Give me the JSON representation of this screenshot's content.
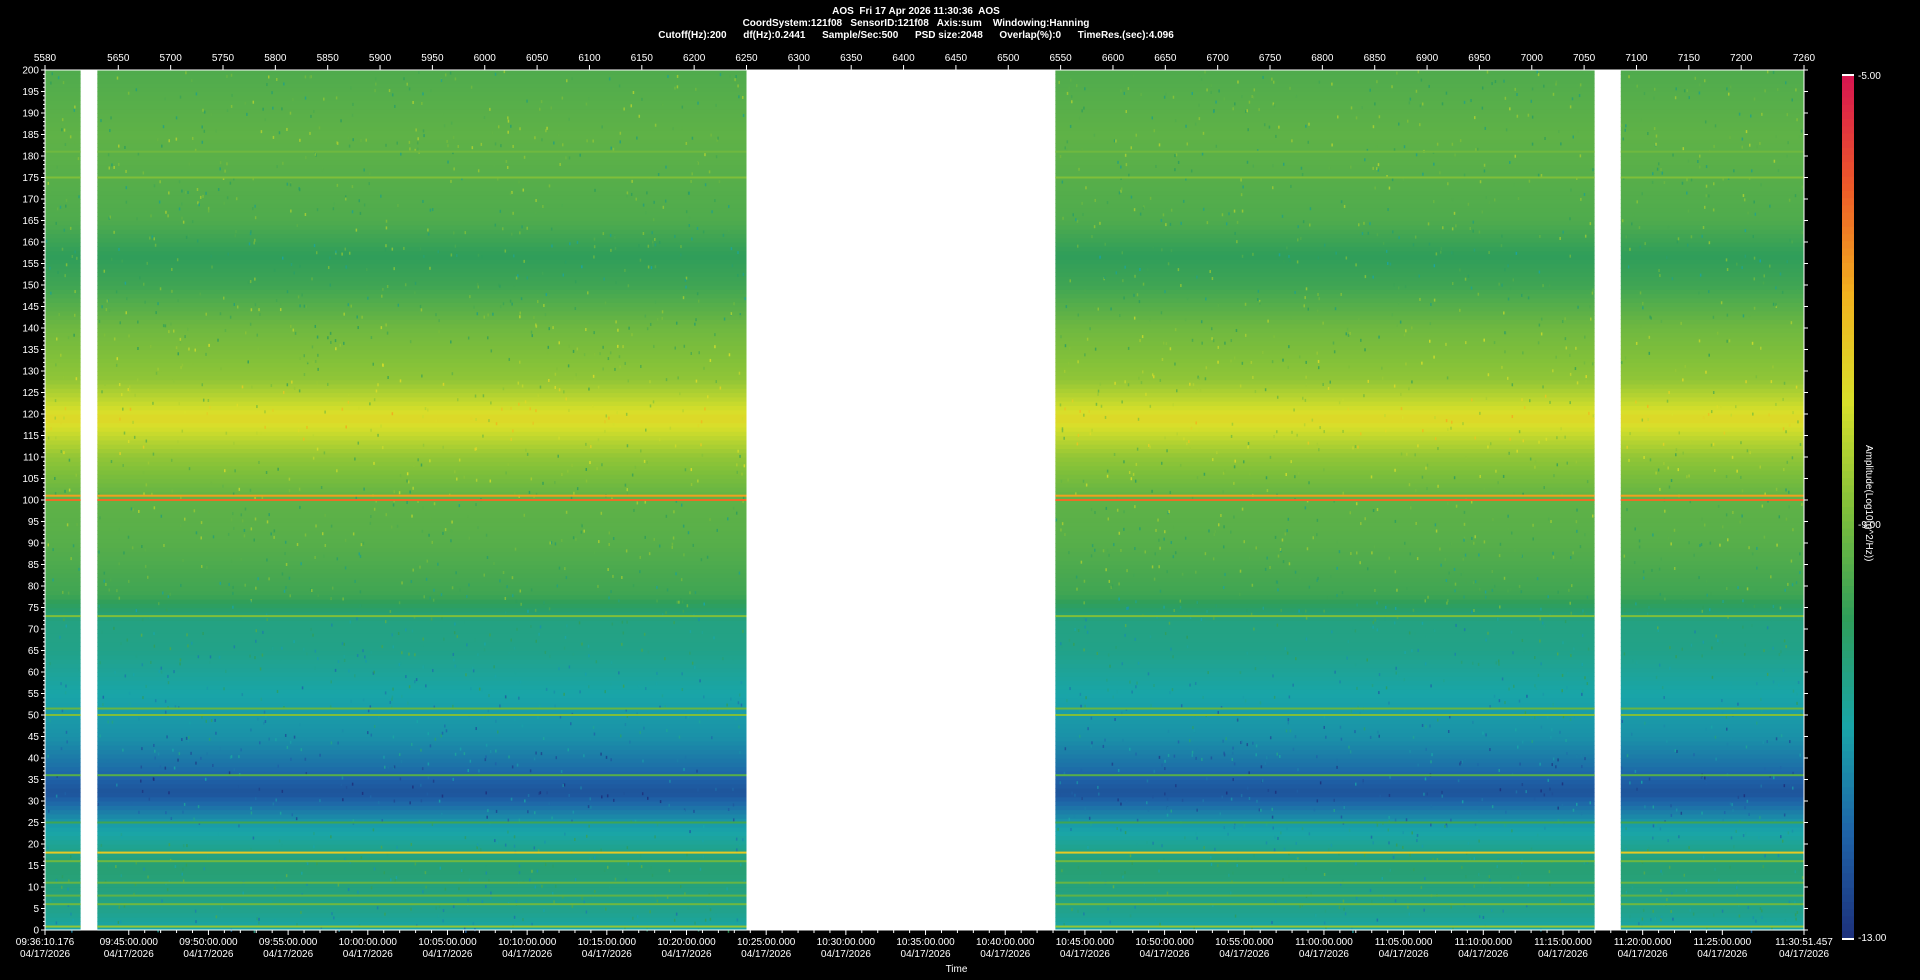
{
  "header": {
    "line1": "AOS  Fri 17 Apr 2026 11:30:36  AOS",
    "line2": "CoordSystem:121f08   SensorID:121f08   Axis:sum    Windowing:Hanning",
    "line3": "Cutoff(Hz):200      df(Hz):0.2441      Sample/Sec:500      PSD size:2048      Overlap(%):0      TimeRes.(sec):4.096"
  },
  "chart_data": {
    "type": "heatmap",
    "title": "AOS  Fri 17 Apr 2026 11:30:36  AOS",
    "xlabel": "Time",
    "ylabel": "",
    "colorbar_label": "Amplitude(Log10(g^2/Hz))",
    "colorbar_ticks": [
      "-5.00",
      "-9.00",
      "-13.00"
    ],
    "colorbar_range": [
      -13,
      -5
    ],
    "y_range": [
      0,
      200
    ],
    "y_ticks": [
      0,
      5,
      10,
      15,
      20,
      25,
      30,
      35,
      40,
      45,
      50,
      55,
      60,
      65,
      70,
      75,
      80,
      85,
      90,
      95,
      100,
      105,
      110,
      115,
      120,
      125,
      130,
      135,
      140,
      145,
      150,
      155,
      160,
      165,
      170,
      175,
      180,
      185,
      190,
      195,
      200
    ],
    "top_axis_range": [
      5580,
      7260
    ],
    "top_axis_ticks": [
      5580,
      5650,
      5700,
      5750,
      5800,
      5850,
      5900,
      5950,
      6000,
      6050,
      6100,
      6150,
      6200,
      6250,
      6300,
      6350,
      6400,
      6450,
      6500,
      6550,
      6600,
      6650,
      6700,
      6750,
      6800,
      6850,
      6900,
      6950,
      7000,
      7050,
      7100,
      7150,
      7200,
      7260
    ],
    "time_labels": [
      [
        "09:36:10.176",
        "04/17/2026"
      ],
      [
        "09:45:00.000",
        "04/17/2026"
      ],
      [
        "09:50:00.000",
        "04/17/2026"
      ],
      [
        "09:55:00.000",
        "04/17/2026"
      ],
      [
        "10:00:00.000",
        "04/17/2026"
      ],
      [
        "10:05:00.000",
        "04/17/2026"
      ],
      [
        "10:10:00.000",
        "04/17/2026"
      ],
      [
        "10:15:00.000",
        "04/17/2026"
      ],
      [
        "10:20:00.000",
        "04/17/2026"
      ],
      [
        "10:25:00.000",
        "04/17/2026"
      ],
      [
        "10:30:00.000",
        "04/17/2026"
      ],
      [
        "10:35:00.000",
        "04/17/2026"
      ],
      [
        "10:40:00.000",
        "04/17/2026"
      ],
      [
        "10:45:00.000",
        "04/17/2026"
      ],
      [
        "10:50:00.000",
        "04/17/2026"
      ],
      [
        "10:55:00.000",
        "04/17/2026"
      ],
      [
        "11:00:00.000",
        "04/17/2026"
      ],
      [
        "11:05:00.000",
        "04/17/2026"
      ],
      [
        "11:10:00.000",
        "04/17/2026"
      ],
      [
        "11:15:00.000",
        "04/17/2026"
      ],
      [
        "11:20:00.000",
        "04/17/2026"
      ],
      [
        "11:25:00.000",
        "04/17/2026"
      ],
      [
        "11:30:51.457",
        "04/17/2026"
      ]
    ],
    "data_gaps_top_axis": [
      [
        5614,
        5630
      ],
      [
        6250,
        6545
      ],
      [
        7060,
        7085
      ]
    ],
    "spectral_lines_hz": [
      {
        "hz": 0.8,
        "level": -8.8
      },
      {
        "hz": 6,
        "level": -9.2
      },
      {
        "hz": 8,
        "level": -9.4
      },
      {
        "hz": 11,
        "level": -9.3
      },
      {
        "hz": 16,
        "level": -9.2
      },
      {
        "hz": 18,
        "level": -7.5
      },
      {
        "hz": 25,
        "level": -9.8
      },
      {
        "hz": 36,
        "level": -9.5
      },
      {
        "hz": 50,
        "level": -9.0
      },
      {
        "hz": 51.5,
        "level": -9.3
      },
      {
        "hz": 73,
        "level": -9.0
      },
      {
        "hz": 100,
        "level": -6.2
      },
      {
        "hz": 101,
        "level": -6.8
      },
      {
        "hz": 175,
        "level": -9.0
      },
      {
        "hz": 181,
        "level": -9.2
      }
    ],
    "band_profile": [
      {
        "hz": 0,
        "level": -11.0
      },
      {
        "hz": 5,
        "level": -10.6
      },
      {
        "hz": 15,
        "level": -10.3
      },
      {
        "hz": 25,
        "level": -11.2
      },
      {
        "hz": 32,
        "level": -12.3
      },
      {
        "hz": 38,
        "level": -11.8
      },
      {
        "hz": 45,
        "level": -11.3
      },
      {
        "hz": 55,
        "level": -11.0
      },
      {
        "hz": 65,
        "level": -10.6
      },
      {
        "hz": 72,
        "level": -10.5
      },
      {
        "hz": 78,
        "level": -9.8
      },
      {
        "hz": 90,
        "level": -9.5
      },
      {
        "hz": 100,
        "level": -9.4
      },
      {
        "hz": 110,
        "level": -8.8
      },
      {
        "hz": 119,
        "level": -7.8
      },
      {
        "hz": 128,
        "level": -8.8
      },
      {
        "hz": 140,
        "level": -9.2
      },
      {
        "hz": 150,
        "level": -9.8
      },
      {
        "hz": 157,
        "level": -10.0
      },
      {
        "hz": 165,
        "level": -9.6
      },
      {
        "hz": 185,
        "level": -9.4
      },
      {
        "hz": 200,
        "level": -9.6
      }
    ],
    "colormap": [
      "#1d2f7a",
      "#1e63a8",
      "#19a5a8",
      "#2f9e5a",
      "#7fbf3a",
      "#d8e02a",
      "#f2b21e",
      "#ee5a28",
      "#d8174f"
    ],
    "grid": false,
    "legend": "colorbar-right"
  }
}
